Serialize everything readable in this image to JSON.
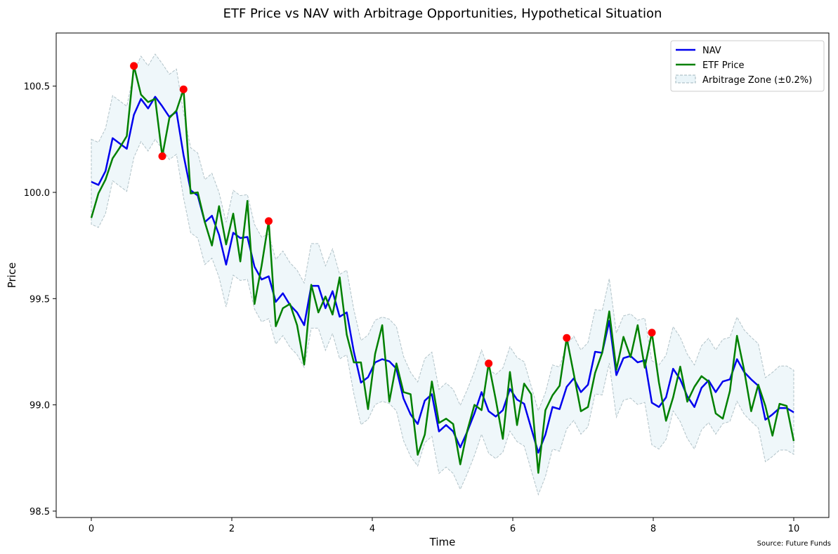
{
  "chart_data": {
    "type": "line",
    "title": "ETF Price vs NAV with Arbitrage Opportunities, Hypothetical Situation",
    "xlabel": "Time",
    "ylabel": "Price",
    "xlim": [
      -0.5,
      10.5
    ],
    "ylim": [
      98.47,
      100.75
    ],
    "x_ticks": [
      0,
      2,
      4,
      6,
      8,
      10
    ],
    "y_ticks": [
      98.5,
      99.0,
      99.5,
      100.0,
      100.5
    ],
    "y_tick_labels": [
      "98.5",
      "99.0",
      "99.5",
      "100.0",
      "100.5"
    ],
    "x_tick_labels": [
      "0",
      "2",
      "4",
      "6",
      "8",
      "10"
    ],
    "grid": false,
    "legend_position": "top-right",
    "source": "Source: Future Funds",
    "x_start": 0,
    "x_step": 0.10101,
    "series": [
      {
        "name": "NAV",
        "color": "#0000ee",
        "values": [
          100.05,
          100.035,
          100.1,
          100.255,
          100.23,
          100.205,
          100.365,
          100.44,
          100.395,
          100.45,
          100.405,
          100.355,
          100.38,
          100.175,
          100.01,
          99.985,
          99.86,
          99.89,
          99.8,
          99.66,
          99.81,
          99.785,
          99.79,
          99.65,
          99.59,
          99.605,
          99.485,
          99.525,
          99.47,
          99.435,
          99.375,
          99.56,
          99.56,
          99.455,
          99.535,
          99.415,
          99.435,
          99.25,
          99.105,
          99.13,
          99.2,
          99.215,
          99.205,
          99.17,
          99.03,
          98.955,
          98.91,
          99.02,
          99.05,
          98.875,
          98.905,
          98.875,
          98.8,
          98.875,
          98.96,
          99.06,
          98.97,
          98.945,
          98.975,
          99.075,
          99.025,
          99.005,
          98.89,
          98.775,
          98.86,
          98.99,
          98.98,
          99.085,
          99.125,
          99.06,
          99.095,
          99.25,
          99.245,
          99.395,
          99.14,
          99.22,
          99.23,
          99.2,
          99.21,
          99.01,
          98.99,
          99.035,
          99.17,
          99.12,
          99.04,
          98.99,
          99.08,
          99.115,
          99.06,
          99.11,
          99.12,
          99.215,
          99.155,
          99.12,
          99.09,
          98.93,
          98.955,
          98.985,
          98.985,
          98.965
        ]
      },
      {
        "name": "ETF Price",
        "color": "#008000",
        "values": [
          99.88,
          99.995,
          100.06,
          100.16,
          100.21,
          100.265,
          100.595,
          100.46,
          100.425,
          100.44,
          100.17,
          100.35,
          100.385,
          100.485,
          99.995,
          100.0,
          99.86,
          99.75,
          99.935,
          99.755,
          99.9,
          99.675,
          99.96,
          99.475,
          99.655,
          99.865,
          99.37,
          99.455,
          99.475,
          99.375,
          99.19,
          99.565,
          99.435,
          99.51,
          99.425,
          99.6,
          99.33,
          99.2,
          99.2,
          98.98,
          99.24,
          99.375,
          99.015,
          99.195,
          99.06,
          99.05,
          98.765,
          98.86,
          99.11,
          98.915,
          98.935,
          98.91,
          98.72,
          98.88,
          99.0,
          98.975,
          99.195,
          99.025,
          98.84,
          99.155,
          98.905,
          99.1,
          99.05,
          98.68,
          98.975,
          99.045,
          99.09,
          99.315,
          99.145,
          98.97,
          98.99,
          99.15,
          99.245,
          99.44,
          99.165,
          99.32,
          99.225,
          99.375,
          99.175,
          99.34,
          99.105,
          98.925,
          99.035,
          99.18,
          99.015,
          99.085,
          99.135,
          99.11,
          98.96,
          98.935,
          99.065,
          99.325,
          99.165,
          98.97,
          99.095,
          98.995,
          98.855,
          99.005,
          98.995,
          98.83
        ]
      }
    ],
    "band": {
      "name": "Arbitrage Zone (±0.2%)",
      "pct": 0.002,
      "fill": "#add8e6",
      "edge": "#6d8b95"
    },
    "arbitrage_points": [
      {
        "x": 0.606,
        "y": 100.595
      },
      {
        "x": 1.01,
        "y": 100.17
      },
      {
        "x": 1.313,
        "y": 100.485
      },
      {
        "x": 2.525,
        "y": 99.865
      },
      {
        "x": 5.657,
        "y": 99.195
      },
      {
        "x": 6.768,
        "y": 99.315
      },
      {
        "x": 7.98,
        "y": 99.34
      }
    ],
    "marker_color": "#ff0000"
  }
}
